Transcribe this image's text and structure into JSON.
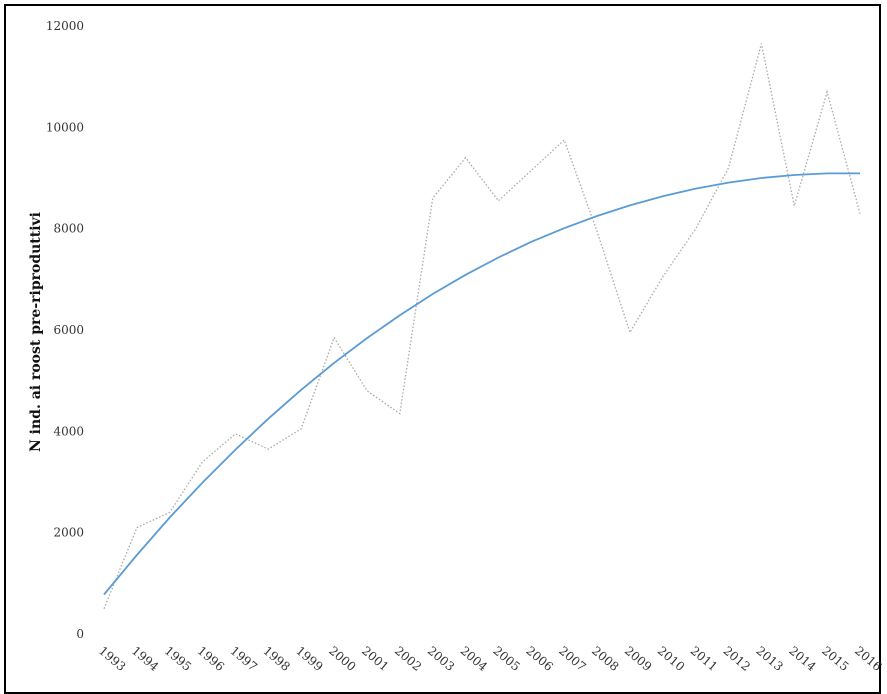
{
  "chart_data": {
    "type": "line",
    "title": "",
    "xlabel": "",
    "ylabel": "N ind. ai roost pre-riproduttivi",
    "ylim": [
      0,
      12000
    ],
    "yticks": [
      "0",
      "2000",
      "4000",
      "6000",
      "8000",
      "10000",
      "12000"
    ],
    "categories": [
      "1993",
      "1994",
      "1995",
      "1996",
      "1997",
      "1998",
      "1999",
      "2000",
      "2001",
      "2002",
      "2003",
      "2004",
      "2005",
      "2006",
      "2007",
      "2008",
      "2009",
      "2010",
      "2011",
      "2012",
      "2013",
      "2014",
      "2015",
      "2016"
    ],
    "grid": false,
    "legend": "none",
    "series": [
      {
        "style": "dotted",
        "color": "#a9a9a9",
        "values": [
          500,
          2100,
          2400,
          3400,
          3950,
          3650,
          4050,
          5850,
          4800,
          4350,
          8600,
          9400,
          8550,
          9150,
          9750,
          7950,
          5950,
          7050,
          8000,
          9200,
          11650,
          8450,
          10700,
          8300
        ]
      },
      {
        "style": "solid",
        "color": "#5b9bd5",
        "values": [
          780,
          1560,
          2300,
          2990,
          3640,
          4250,
          4820,
          5350,
          5840,
          6290,
          6710,
          7090,
          7430,
          7740,
          8010,
          8250,
          8460,
          8640,
          8790,
          8910,
          9000,
          9060,
          9090,
          9090
        ]
      }
    ]
  }
}
